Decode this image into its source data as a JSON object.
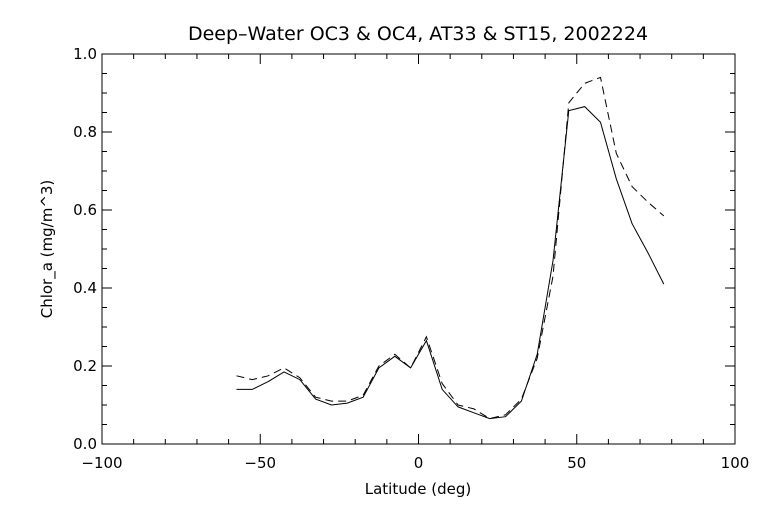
{
  "chart_data": {
    "type": "line",
    "title": "Deep–Water OC3 & OC4, AT33 & ST15, 2002224",
    "xlabel": "Latitude (deg)",
    "ylabel": "Chlor_a (mg/m^3)",
    "xlim": [
      -100,
      100
    ],
    "ylim": [
      0.0,
      1.0
    ],
    "xticks": [
      -100,
      -50,
      0,
      50,
      100
    ],
    "xtick_labels": [
      "−100",
      "−50",
      "0",
      "50",
      "100"
    ],
    "yticks": [
      0.0,
      0.2,
      0.4,
      0.6,
      0.8,
      1.0
    ],
    "ytick_labels": [
      "0.0",
      "0.2",
      "0.4",
      "0.6",
      "0.8",
      "1.0"
    ],
    "grid": false,
    "legend": "none",
    "series": [
      {
        "style": "solid",
        "x": [
          -57.5,
          -52.5,
          -47.5,
          -42.5,
          -37.5,
          -32.5,
          -27.5,
          -22.5,
          -17.5,
          -12.5,
          -7.5,
          -2.5,
          2.5,
          7.5,
          12.5,
          17.5,
          22.5,
          27.5,
          32.5,
          37.5,
          42.5,
          47.5,
          52.5,
          57.5,
          62.5,
          67.5,
          72.5,
          77.5
        ],
        "y": [
          0.14,
          0.14,
          0.16,
          0.185,
          0.165,
          0.115,
          0.1,
          0.105,
          0.12,
          0.195,
          0.225,
          0.195,
          0.265,
          0.14,
          0.095,
          0.08,
          0.065,
          0.07,
          0.11,
          0.23,
          0.47,
          0.855,
          0.865,
          0.825,
          0.68,
          0.565,
          0.49,
          0.41
        ]
      },
      {
        "style": "dashed",
        "x": [
          -57.5,
          -52.5,
          -47.5,
          -42.5,
          -37.5,
          -32.5,
          -27.5,
          -22.5,
          -17.5,
          -12.5,
          -7.5,
          -2.5,
          2.5,
          7.5,
          12.5,
          17.5,
          22.5,
          27.5,
          32.5,
          37.5,
          42.5,
          47.5,
          52.5,
          57.5,
          62.5,
          67.5,
          72.5,
          77.5
        ],
        "y": [
          0.175,
          0.165,
          0.175,
          0.195,
          0.17,
          0.12,
          0.11,
          0.11,
          0.125,
          0.2,
          0.23,
          0.195,
          0.275,
          0.155,
          0.1,
          0.09,
          0.065,
          0.075,
          0.115,
          0.22,
          0.43,
          0.875,
          0.925,
          0.94,
          0.745,
          0.66,
          0.62,
          0.585
        ]
      }
    ]
  }
}
